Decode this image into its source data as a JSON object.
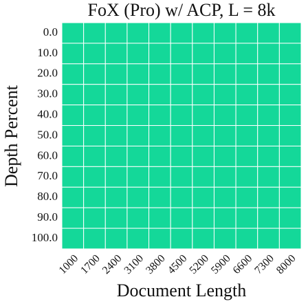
{
  "chart_data": {
    "type": "heatmap",
    "title": "FoX (Pro) w/ ACP, L = 8k",
    "x_label": "Document Length",
    "y_label": "Depth Percent",
    "x_categories": [
      "1000",
      "1700",
      "2400",
      "3100",
      "3800",
      "4500",
      "5200",
      "5900",
      "6600",
      "7300",
      "8000"
    ],
    "y_categories": [
      "0.0",
      "10.0",
      "20.0",
      "30.0",
      "40.0",
      "50.0",
      "60.0",
      "70.0",
      "80.0",
      "90.0",
      "100.0"
    ],
    "color": "#14d899",
    "values": [
      [
        1,
        1,
        1,
        1,
        1,
        1,
        1,
        1,
        1,
        1,
        1
      ],
      [
        1,
        1,
        1,
        1,
        1,
        1,
        1,
        1,
        1,
        1,
        1
      ],
      [
        1,
        1,
        1,
        1,
        1,
        1,
        1,
        1,
        1,
        1,
        1
      ],
      [
        1,
        1,
        1,
        1,
        1,
        1,
        1,
        1,
        1,
        1,
        1
      ],
      [
        1,
        1,
        1,
        1,
        1,
        1,
        1,
        1,
        1,
        1,
        1
      ],
      [
        1,
        1,
        1,
        1,
        1,
        1,
        1,
        1,
        1,
        1,
        1
      ],
      [
        1,
        1,
        1,
        1,
        1,
        1,
        1,
        1,
        1,
        1,
        1
      ],
      [
        1,
        1,
        1,
        1,
        1,
        1,
        1,
        1,
        1,
        1,
        1
      ],
      [
        1,
        1,
        1,
        1,
        1,
        1,
        1,
        1,
        1,
        1,
        1
      ],
      [
        1,
        1,
        1,
        1,
        1,
        1,
        1,
        1,
        1,
        1,
        1
      ],
      [
        1,
        1,
        1,
        1,
        1,
        1,
        1,
        1,
        1,
        1,
        1
      ]
    ]
  }
}
